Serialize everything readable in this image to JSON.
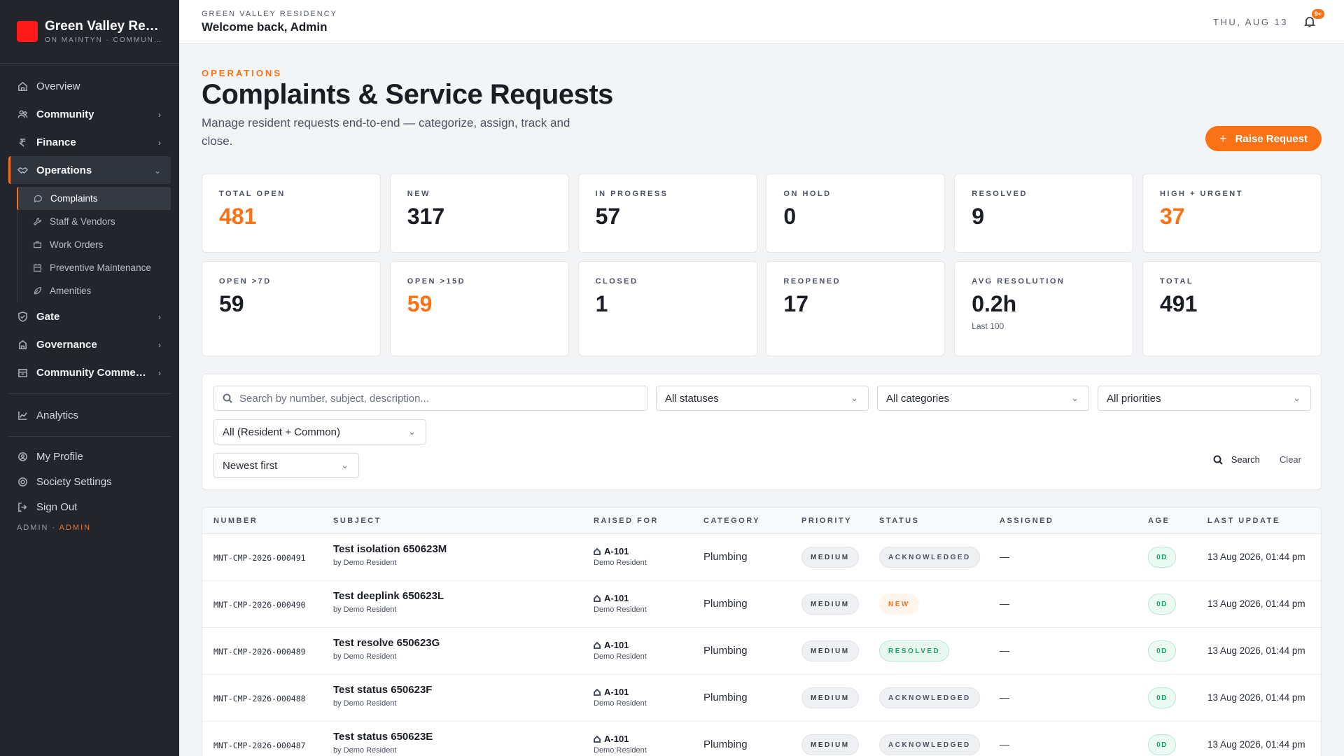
{
  "brand": {
    "title": "Green Valley Residency",
    "subtitle": "ON MAINTYN · COMMUNITY"
  },
  "sidebar": {
    "items": [
      {
        "label": "Overview",
        "icon": "home-icon"
      },
      {
        "label": "Community",
        "icon": "users-icon"
      },
      {
        "label": "Finance",
        "icon": "rupee-icon"
      },
      {
        "label": "Operations",
        "icon": "handshake-icon"
      },
      {
        "label": "Gate",
        "icon": "shield-icon"
      },
      {
        "label": "Governance",
        "icon": "building-icon"
      },
      {
        "label": "Community Commerce",
        "icon": "store-icon"
      },
      {
        "label": "Analytics",
        "icon": "chart-icon"
      }
    ],
    "subitems": [
      {
        "label": "Complaints",
        "icon": "chat-icon"
      },
      {
        "label": "Staff & Vendors",
        "icon": "wrench-icon"
      },
      {
        "label": "Work Orders",
        "icon": "briefcase-icon"
      },
      {
        "label": "Preventive Maintenance",
        "icon": "calendar-icon"
      },
      {
        "label": "Amenities",
        "icon": "leaf-icon"
      }
    ],
    "bottom": [
      {
        "label": "My Profile",
        "icon": "user-icon"
      },
      {
        "label": "Society Settings",
        "icon": "gear-icon"
      },
      {
        "label": "Sign Out",
        "icon": "signout-icon"
      }
    ],
    "role_left": "ADMIN",
    "role_sep": " · ",
    "role_right": "ADMIN"
  },
  "topbar": {
    "kicker": "GREEN VALLEY RESIDENCY",
    "welcome": "Welcome back, Admin",
    "date": "THU, AUG 13",
    "badge": "9+"
  },
  "page": {
    "kicker": "OPERATIONS",
    "title": "Complaints & Service Requests",
    "description": "Manage resident requests end-to-end — categorize, assign, track and close.",
    "raise_button": "Raise Request"
  },
  "stats": [
    {
      "label": "TOTAL OPEN",
      "value": "481",
      "accent": true
    },
    {
      "label": "NEW",
      "value": "317",
      "accent": false
    },
    {
      "label": "IN PROGRESS",
      "value": "57",
      "accent": false
    },
    {
      "label": "ON HOLD",
      "value": "0",
      "accent": false
    },
    {
      "label": "RESOLVED",
      "value": "9",
      "accent": false
    },
    {
      "label": "HIGH + URGENT",
      "value": "37",
      "accent": true
    },
    {
      "label": "OPEN >7D",
      "value": "59",
      "accent": false
    },
    {
      "label": "OPEN >15D",
      "value": "59",
      "accent": true
    },
    {
      "label": "CLOSED",
      "value": "1",
      "accent": false
    },
    {
      "label": "REOPENED",
      "value": "17",
      "accent": false
    },
    {
      "label": "AVG RESOLUTION",
      "value": "0.2h",
      "accent": false,
      "note": "Last 100"
    },
    {
      "label": "TOTAL",
      "value": "491",
      "accent": false
    }
  ],
  "filters": {
    "search_placeholder": "Search by number, subject, description...",
    "status": "All statuses",
    "category": "All categories",
    "priority": "All priorities",
    "scope": "All (Resident + Common)",
    "sort": "Newest first",
    "search_button": "Search",
    "clear_button": "Clear"
  },
  "table": {
    "headers": [
      "NUMBER",
      "SUBJECT",
      "RAISED FOR",
      "CATEGORY",
      "PRIORITY",
      "STATUS",
      "ASSIGNED",
      "AGE",
      "LAST UPDATE"
    ],
    "rows": [
      {
        "number": "MNT-CMP-2026-000491",
        "subject": "Test isolation 650623M",
        "by": "by Demo Resident",
        "unit": "A-101",
        "resident": "Demo Resident",
        "category": "Plumbing",
        "priority": "MEDIUM",
        "status": "ACKNOWLEDGED",
        "assigned": "—",
        "age": "0D",
        "updated": "13 Aug 2026, 01:44 pm"
      },
      {
        "number": "MNT-CMP-2026-000490",
        "subject": "Test deeplink 650623L",
        "by": "by Demo Resident",
        "unit": "A-101",
        "resident": "Demo Resident",
        "category": "Plumbing",
        "priority": "MEDIUM",
        "status": "NEW",
        "assigned": "—",
        "age": "0D",
        "updated": "13 Aug 2026, 01:44 pm"
      },
      {
        "number": "MNT-CMP-2026-000489",
        "subject": "Test resolve 650623G",
        "by": "by Demo Resident",
        "unit": "A-101",
        "resident": "Demo Resident",
        "category": "Plumbing",
        "priority": "MEDIUM",
        "status": "RESOLVED",
        "assigned": "—",
        "age": "0D",
        "updated": "13 Aug 2026, 01:44 pm"
      },
      {
        "number": "MNT-CMP-2026-000488",
        "subject": "Test status 650623F",
        "by": "by Demo Resident",
        "unit": "A-101",
        "resident": "Demo Resident",
        "category": "Plumbing",
        "priority": "MEDIUM",
        "status": "ACKNOWLEDGED",
        "assigned": "—",
        "age": "0D",
        "updated": "13 Aug 2026, 01:44 pm"
      },
      {
        "number": "MNT-CMP-2026-000487",
        "subject": "Test status 650623E",
        "by": "by Demo Resident",
        "unit": "A-101",
        "resident": "Demo Resident",
        "category": "Plumbing",
        "priority": "MEDIUM",
        "status": "ACKNOWLEDGED",
        "assigned": "—",
        "age": "0D",
        "updated": "13 Aug 2026, 01:44 pm"
      }
    ]
  },
  "colors": {
    "accent": "#f97316",
    "sidebar_bg": "#22252c",
    "brand": "#ff1a1a",
    "success": "#16a36f"
  }
}
